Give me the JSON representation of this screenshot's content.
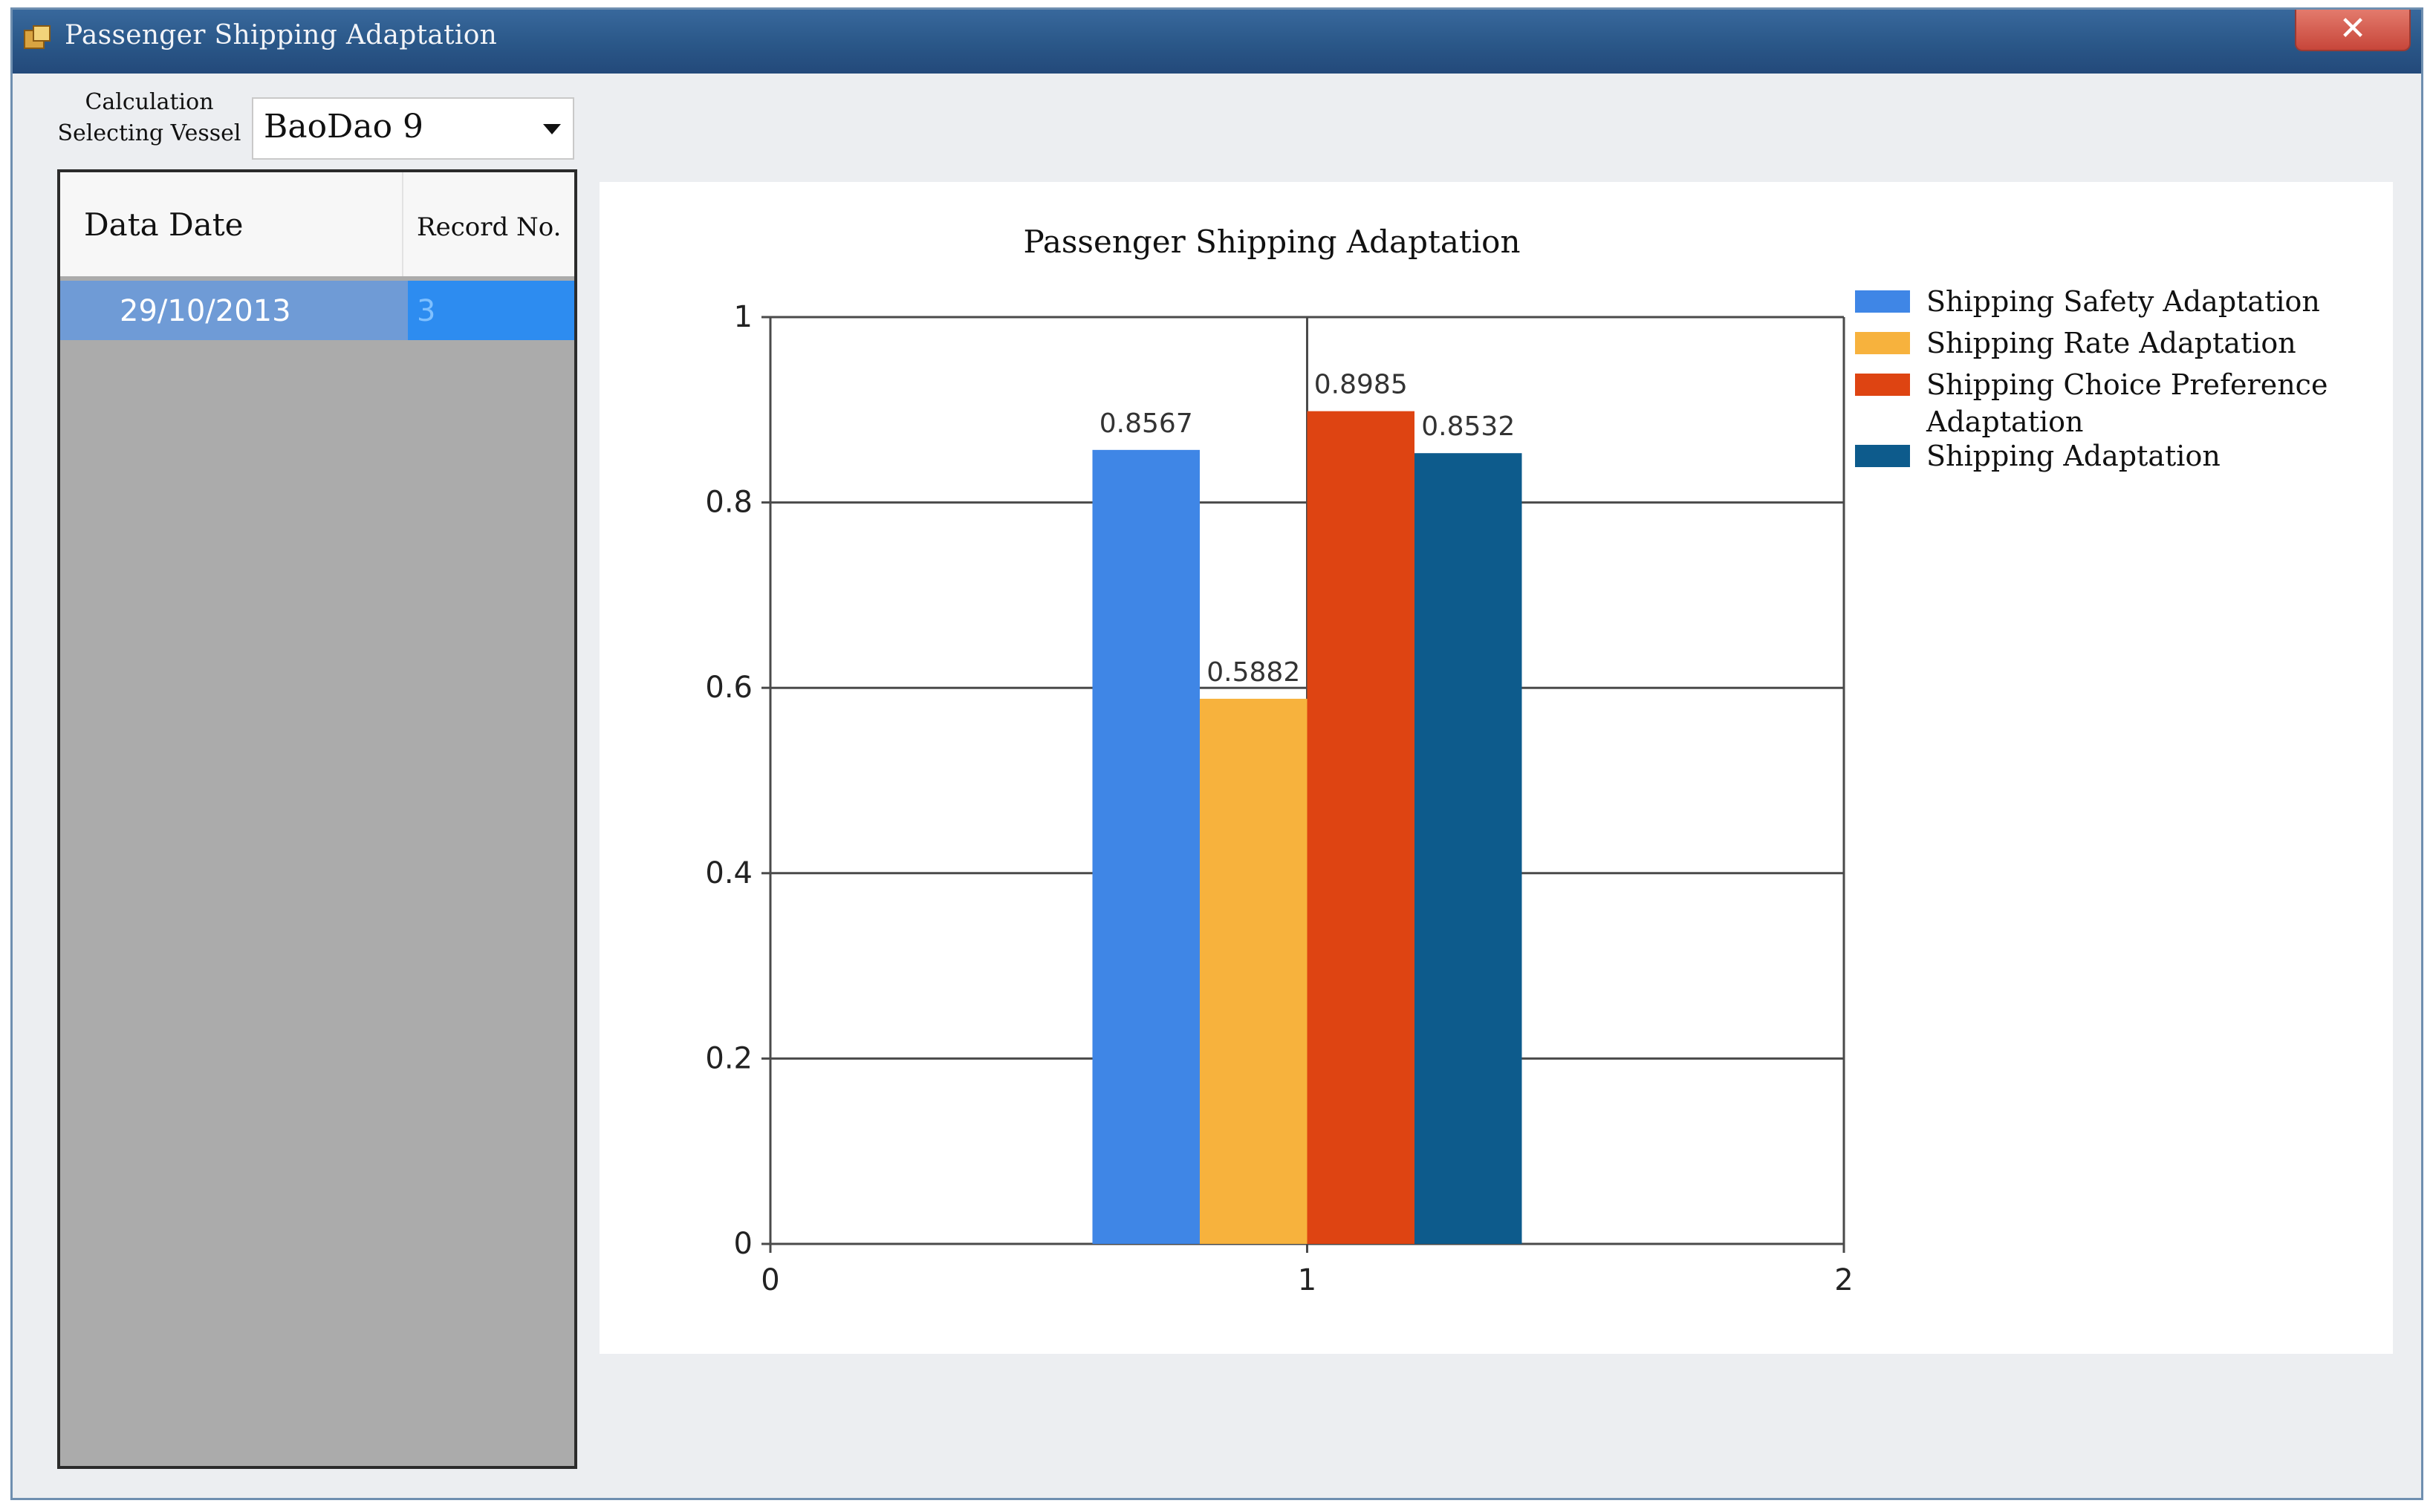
{
  "window": {
    "title": "Passenger Shipping Adaptation",
    "close_glyph": "✕"
  },
  "toolbar": {
    "calc_label_line1": "Calculation",
    "calc_label_line2": "Selecting Vessel",
    "vessel_value": "BaoDao 9"
  },
  "grid": {
    "headers": {
      "date": "Data Date",
      "record": "Record No."
    },
    "rows": [
      {
        "date": "29/10/2013",
        "record": "3"
      }
    ]
  },
  "colors": {
    "titlebar": "#2a5788",
    "selected_row": "#6f9bd6",
    "selected_cell": "#2d8cf0"
  },
  "chart_data": {
    "type": "bar",
    "title": "Passenger Shipping Adaptation",
    "xlabel": "",
    "ylabel": "",
    "x": [
      1
    ],
    "xlim": [
      0,
      2
    ],
    "xticks": [
      "0",
      "1",
      "2"
    ],
    "ylim": [
      0,
      1
    ],
    "yticks": [
      "0",
      "0.2",
      "0.4",
      "0.6",
      "0.8",
      "1"
    ],
    "grid": true,
    "legend_position": "right",
    "series": [
      {
        "name": "Shipping Safety Adaptation",
        "values": [
          0.8567
        ],
        "label": "0.8567",
        "color": "#3f86e6"
      },
      {
        "name": "Shipping Rate Adaptation",
        "values": [
          0.5882
        ],
        "label": "0.5882",
        "color": "#f7b23d"
      },
      {
        "name": "Shipping Choice Preference Adaptation",
        "name_line1": "Shipping Choice Preference",
        "name_line2": "Adaptation",
        "values": [
          0.8985
        ],
        "label": "0.8985",
        "color": "#de4412"
      },
      {
        "name": "Shipping Adaptation",
        "values": [
          0.8532
        ],
        "label": "0.8532",
        "color": "#0d5b8c"
      }
    ]
  }
}
